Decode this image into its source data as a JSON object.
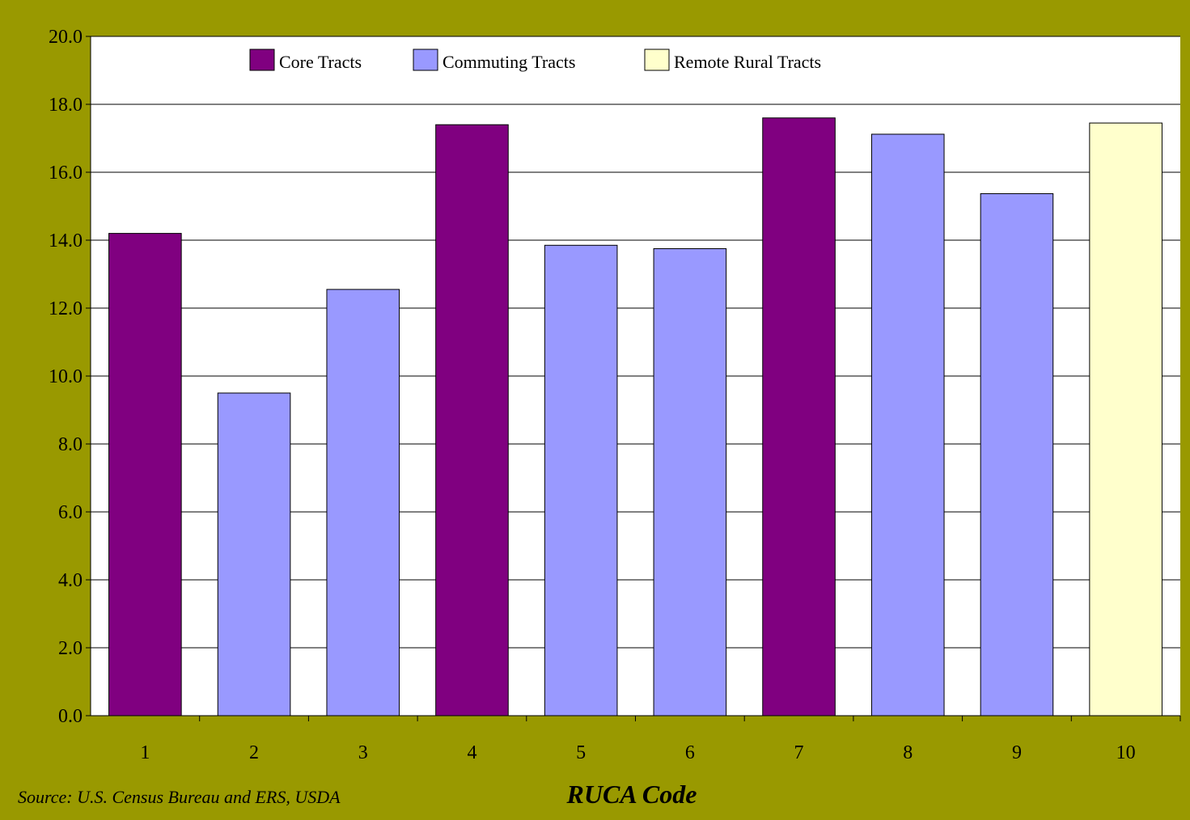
{
  "chart_data": {
    "type": "bar",
    "categories": [
      "1",
      "2",
      "3",
      "4",
      "5",
      "6",
      "7",
      "8",
      "9",
      "10"
    ],
    "values": [
      14.2,
      9.5,
      12.55,
      17.4,
      13.85,
      13.75,
      17.6,
      17.12,
      15.37,
      17.45
    ],
    "bar_groups": [
      "Core Tracts",
      "Commuting Tracts",
      "Commuting Tracts",
      "Core Tracts",
      "Commuting Tracts",
      "Commuting Tracts",
      "Core Tracts",
      "Commuting Tracts",
      "Commuting Tracts",
      "Remote Rural Tracts"
    ],
    "legend": [
      {
        "name": "Core Tracts",
        "color": "#800080"
      },
      {
        "name": "Commuting Tracts",
        "color": "#9999FF"
      },
      {
        "name": "Remote Rural Tracts",
        "color": "#FFFFCC"
      }
    ],
    "legend_position": "top",
    "ylim": [
      0,
      20
    ],
    "yticks": [
      "0.0",
      "2.0",
      "4.0",
      "6.0",
      "8.0",
      "10.0",
      "12.0",
      "14.0",
      "16.0",
      "18.0",
      "20.0"
    ],
    "ytick_values": [
      0,
      2,
      4,
      6,
      8,
      10,
      12,
      14,
      16,
      18,
      20
    ],
    "grid": true,
    "xlabel": "RUCA Code",
    "ylabel": "",
    "title": "",
    "source": "Source: U.S. Census Bureau and ERS, USDA"
  },
  "colors": {
    "background": "#999900",
    "plot_area": "#FFFFFF"
  }
}
